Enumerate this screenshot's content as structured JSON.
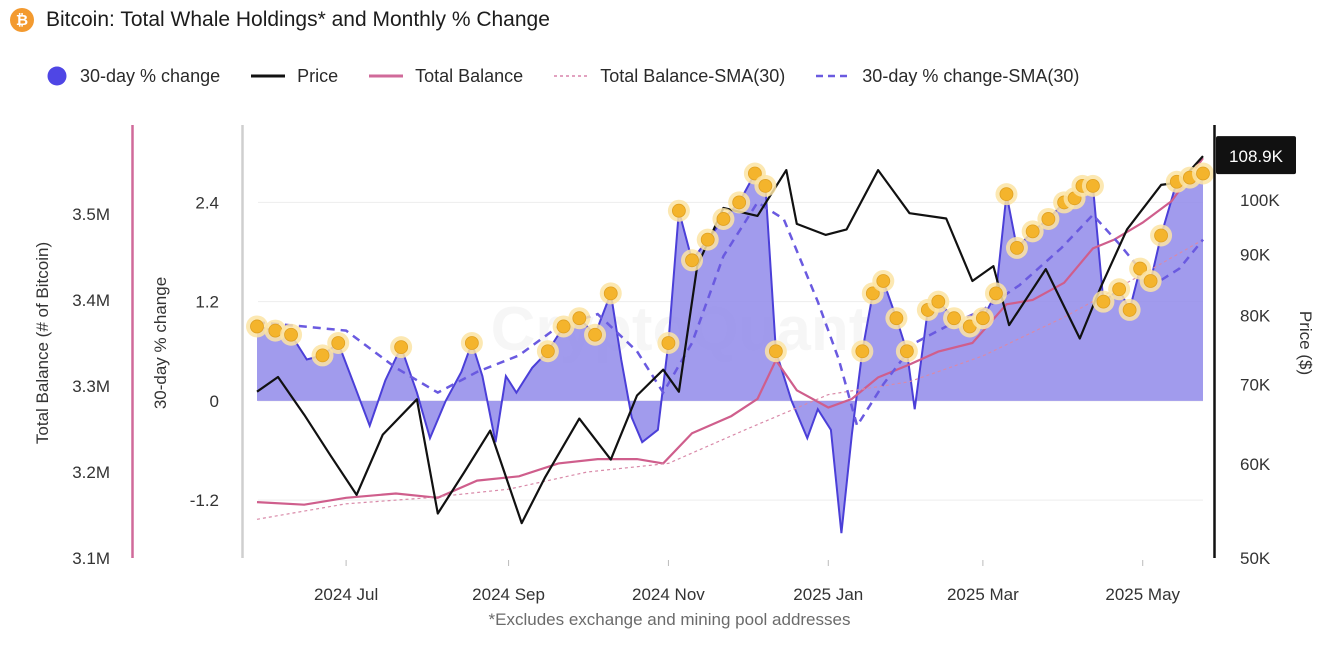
{
  "header": {
    "logo_symbol": "₿",
    "logo_icon": "bitcoin-icon",
    "title": "Bitcoin: Total Whale Holdings* and Monthly % Change"
  },
  "legend": [
    {
      "label": "30-day % change",
      "marker": "dot",
      "color": "#4f46e5"
    },
    {
      "label": "Price",
      "marker": "line",
      "color": "#111111"
    },
    {
      "label": "Total Balance",
      "marker": "line",
      "color": "#d06a9a"
    },
    {
      "label": "Total Balance-SMA(30)",
      "marker": "dashed-thin",
      "color": "#d06a9a"
    },
    {
      "label": "30-day % change-SMA(30)",
      "marker": "dashed",
      "color": "#6a5ae0"
    }
  ],
  "footnote": "*Excludes exchange and mining pool addresses",
  "watermark": "CryptoQuant",
  "colors": {
    "area_fill": "#9089ea",
    "area_stroke": "#4b3fd8",
    "price": "#111111",
    "balance": "#cf5e8c",
    "balance_sma": "#d98aa9",
    "pct_sma": "#6a5ae0",
    "marker_fill": "#f4b42c",
    "marker_halo": "#fbe4a4",
    "axis_bar_left": "#d06a9a",
    "axis_bar_right": "#111111"
  },
  "chart_data": {
    "type": "line",
    "title": "Bitcoin: Total Whale Holdings* and Monthly % Change",
    "x_range": [
      "2024-05-28",
      "2025-05-24"
    ],
    "x_tick_labels": [
      "2024 Jul",
      "2024 Sep",
      "2024 Nov",
      "2025 Jan",
      "2025 Mar",
      "2025 May"
    ],
    "x_tick_dates": [
      "2024-07-01",
      "2024-09-01",
      "2024-11-01",
      "2025-01-01",
      "2025-03-01",
      "2025-05-01"
    ],
    "axes": {
      "balance": {
        "label": "Total Balance (# of Bitcoin)",
        "range": [
          3100000,
          3600000
        ],
        "ticks": [
          3100000,
          3200000,
          3300000,
          3400000,
          3500000
        ],
        "tick_labels": [
          "3.1M",
          "3.2M",
          "3.3M",
          "3.4M",
          "3.5M"
        ]
      },
      "pct": {
        "label": "30-day % change",
        "range": [
          -1.9,
          3.3
        ],
        "ticks": [
          -1.2,
          0,
          1.2,
          2.4
        ],
        "tick_labels": [
          "-1.2",
          "0",
          "1.2",
          "2.4"
        ]
      },
      "price": {
        "label": "Price ($)",
        "scale": "log",
        "range": [
          50000,
          115000
        ],
        "ticks": [
          50000,
          60000,
          70000,
          80000,
          90000,
          100000
        ],
        "tick_labels": [
          "50K",
          "60K",
          "70K",
          "80K",
          "90K",
          "100K"
        ],
        "last_value_label": "108.9K"
      }
    },
    "series": [
      {
        "name": "30-day % change",
        "axis": "pct",
        "style": "area",
        "points": [
          [
            "2024-05-28",
            0.9
          ],
          [
            "2024-06-04",
            0.85
          ],
          [
            "2024-06-10",
            0.8
          ],
          [
            "2024-06-16",
            0.5
          ],
          [
            "2024-06-22",
            0.55
          ],
          [
            "2024-06-28",
            0.7
          ],
          [
            "2024-07-04",
            0.2
          ],
          [
            "2024-07-10",
            -0.3
          ],
          [
            "2024-07-16",
            0.25
          ],
          [
            "2024-07-22",
            0.65
          ],
          [
            "2024-07-28",
            0.1
          ],
          [
            "2024-08-02",
            -0.45
          ],
          [
            "2024-08-08",
            0.0
          ],
          [
            "2024-08-14",
            0.35
          ],
          [
            "2024-08-18",
            0.7
          ],
          [
            "2024-08-22",
            0.3
          ],
          [
            "2024-08-27",
            -0.5
          ],
          [
            "2024-08-31",
            0.3
          ],
          [
            "2024-09-04",
            0.1
          ],
          [
            "2024-09-10",
            0.4
          ],
          [
            "2024-09-16",
            0.6
          ],
          [
            "2024-09-22",
            0.9
          ],
          [
            "2024-09-28",
            1.0
          ],
          [
            "2024-10-04",
            0.8
          ],
          [
            "2024-10-10",
            1.3
          ],
          [
            "2024-10-14",
            0.5
          ],
          [
            "2024-10-18",
            -0.2
          ],
          [
            "2024-10-22",
            -0.5
          ],
          [
            "2024-10-28",
            -0.35
          ],
          [
            "2024-11-01",
            0.7
          ],
          [
            "2024-11-05",
            2.3
          ],
          [
            "2024-11-10",
            1.7
          ],
          [
            "2024-11-16",
            1.95
          ],
          [
            "2024-11-22",
            2.2
          ],
          [
            "2024-11-28",
            2.4
          ],
          [
            "2024-12-04",
            2.75
          ],
          [
            "2024-12-08",
            2.6
          ],
          [
            "2024-12-12",
            0.6
          ],
          [
            "2024-12-18",
            0.0
          ],
          [
            "2024-12-24",
            -0.45
          ],
          [
            "2024-12-28",
            -0.1
          ],
          [
            "2025-01-02",
            -0.35
          ],
          [
            "2025-01-06",
            -1.6
          ],
          [
            "2025-01-10",
            -0.4
          ],
          [
            "2025-01-14",
            0.6
          ],
          [
            "2025-01-18",
            1.3
          ],
          [
            "2025-01-22",
            1.45
          ],
          [
            "2025-01-27",
            1.0
          ],
          [
            "2025-01-31",
            0.6
          ],
          [
            "2025-02-03",
            -0.1
          ],
          [
            "2025-02-08",
            1.1
          ],
          [
            "2025-02-12",
            1.2
          ],
          [
            "2025-02-18",
            1.0
          ],
          [
            "2025-02-24",
            0.9
          ],
          [
            "2025-03-01",
            1.0
          ],
          [
            "2025-03-06",
            1.3
          ],
          [
            "2025-03-10",
            2.5
          ],
          [
            "2025-03-14",
            1.85
          ],
          [
            "2025-03-20",
            2.05
          ],
          [
            "2025-03-26",
            2.2
          ],
          [
            "2025-04-01",
            2.4
          ],
          [
            "2025-04-05",
            2.45
          ],
          [
            "2025-04-08",
            2.6
          ],
          [
            "2025-04-12",
            2.6
          ],
          [
            "2025-04-16",
            1.2
          ],
          [
            "2025-04-22",
            1.35
          ],
          [
            "2025-04-26",
            1.1
          ],
          [
            "2025-04-30",
            1.6
          ],
          [
            "2025-05-04",
            1.45
          ],
          [
            "2025-05-08",
            2.0
          ],
          [
            "2025-05-14",
            2.65
          ],
          [
            "2025-05-19",
            2.7
          ],
          [
            "2025-05-24",
            2.75
          ]
        ]
      },
      {
        "name": "30-day % change-SMA(30)",
        "axis": "pct",
        "style": "dashed",
        "points": [
          [
            "2024-05-28",
            0.95
          ],
          [
            "2024-06-15",
            0.9
          ],
          [
            "2024-07-01",
            0.85
          ],
          [
            "2024-07-20",
            0.4
          ],
          [
            "2024-08-05",
            0.1
          ],
          [
            "2024-08-20",
            0.35
          ],
          [
            "2024-09-05",
            0.55
          ],
          [
            "2024-09-20",
            0.9
          ],
          [
            "2024-10-05",
            1.05
          ],
          [
            "2024-10-20",
            0.6
          ],
          [
            "2024-10-30",
            0.1
          ],
          [
            "2024-11-10",
            0.7
          ],
          [
            "2024-11-22",
            1.75
          ],
          [
            "2024-12-05",
            2.4
          ],
          [
            "2024-12-15",
            2.2
          ],
          [
            "2024-12-28",
            1.2
          ],
          [
            "2025-01-05",
            0.5
          ],
          [
            "2025-01-12",
            -0.3
          ],
          [
            "2025-01-22",
            0.2
          ],
          [
            "2025-02-03",
            0.7
          ],
          [
            "2025-02-15",
            0.9
          ],
          [
            "2025-03-01",
            1.1
          ],
          [
            "2025-03-15",
            1.4
          ],
          [
            "2025-03-31",
            1.85
          ],
          [
            "2025-04-12",
            2.25
          ],
          [
            "2025-04-22",
            1.9
          ],
          [
            "2025-05-05",
            1.4
          ],
          [
            "2025-05-15",
            1.6
          ],
          [
            "2025-05-24",
            1.95
          ]
        ]
      },
      {
        "name": "Total Balance",
        "axis": "balance",
        "style": "line",
        "points": [
          [
            "2024-05-28",
            3165000
          ],
          [
            "2024-06-15",
            3162000
          ],
          [
            "2024-07-01",
            3170000
          ],
          [
            "2024-07-20",
            3175000
          ],
          [
            "2024-08-05",
            3170000
          ],
          [
            "2024-08-20",
            3190000
          ],
          [
            "2024-09-05",
            3195000
          ],
          [
            "2024-09-20",
            3210000
          ],
          [
            "2024-10-05",
            3215000
          ],
          [
            "2024-10-20",
            3215000
          ],
          [
            "2024-10-30",
            3210000
          ],
          [
            "2024-11-10",
            3245000
          ],
          [
            "2024-11-25",
            3265000
          ],
          [
            "2024-12-05",
            3285000
          ],
          [
            "2024-12-12",
            3330000
          ],
          [
            "2024-12-20",
            3295000
          ],
          [
            "2025-01-01",
            3275000
          ],
          [
            "2025-01-10",
            3285000
          ],
          [
            "2025-01-20",
            3310000
          ],
          [
            "2025-02-01",
            3325000
          ],
          [
            "2025-02-12",
            3340000
          ],
          [
            "2025-02-25",
            3350000
          ],
          [
            "2025-03-10",
            3395000
          ],
          [
            "2025-03-20",
            3400000
          ],
          [
            "2025-04-01",
            3420000
          ],
          [
            "2025-04-12",
            3460000
          ],
          [
            "2025-04-20",
            3470000
          ],
          [
            "2025-05-01",
            3490000
          ],
          [
            "2025-05-12",
            3515000
          ],
          [
            "2025-05-24",
            3565000
          ]
        ]
      },
      {
        "name": "Total Balance-SMA(30)",
        "axis": "balance",
        "style": "dashed-thin",
        "points": [
          [
            "2024-05-28",
            3145000
          ],
          [
            "2024-07-01",
            3163000
          ],
          [
            "2024-08-01",
            3170000
          ],
          [
            "2024-09-01",
            3180000
          ],
          [
            "2024-10-01",
            3200000
          ],
          [
            "2024-11-01",
            3210000
          ],
          [
            "2024-12-01",
            3250000
          ],
          [
            "2025-01-01",
            3290000
          ],
          [
            "2025-02-01",
            3305000
          ],
          [
            "2025-03-01",
            3335000
          ],
          [
            "2025-04-01",
            3380000
          ],
          [
            "2025-05-01",
            3430000
          ],
          [
            "2025-05-24",
            3470000
          ]
        ]
      },
      {
        "name": "Price",
        "axis": "price",
        "style": "line",
        "points": [
          [
            "2024-05-28",
            69000
          ],
          [
            "2024-06-05",
            71000
          ],
          [
            "2024-06-15",
            66000
          ],
          [
            "2024-06-25",
            61000
          ],
          [
            "2024-07-05",
            56500
          ],
          [
            "2024-07-15",
            63500
          ],
          [
            "2024-07-28",
            68000
          ],
          [
            "2024-08-05",
            54500
          ],
          [
            "2024-08-15",
            59000
          ],
          [
            "2024-08-25",
            64000
          ],
          [
            "2024-09-06",
            53500
          ],
          [
            "2024-09-15",
            58500
          ],
          [
            "2024-09-28",
            65500
          ],
          [
            "2024-10-10",
            60500
          ],
          [
            "2024-10-20",
            68500
          ],
          [
            "2024-10-30",
            72000
          ],
          [
            "2024-11-05",
            69000
          ],
          [
            "2024-11-12",
            88000
          ],
          [
            "2024-11-22",
            98500
          ],
          [
            "2024-12-05",
            97000
          ],
          [
            "2024-12-16",
            106000
          ],
          [
            "2024-12-20",
            95500
          ],
          [
            "2024-12-31",
            93500
          ],
          [
            "2025-01-08",
            94500
          ],
          [
            "2025-01-20",
            106000
          ],
          [
            "2025-02-01",
            97500
          ],
          [
            "2025-02-15",
            96500
          ],
          [
            "2025-02-25",
            85500
          ],
          [
            "2025-03-05",
            88000
          ],
          [
            "2025-03-11",
            78500
          ],
          [
            "2025-03-25",
            87500
          ],
          [
            "2025-04-07",
            76500
          ],
          [
            "2025-04-15",
            84500
          ],
          [
            "2025-04-25",
            94500
          ],
          [
            "2025-05-08",
            103000
          ],
          [
            "2025-05-15",
            103500
          ],
          [
            "2025-05-24",
            108900
          ]
        ]
      }
    ],
    "annotations": "Highlighted dot markers (yellow) placed on local peaks of the 30-day % change area"
  }
}
